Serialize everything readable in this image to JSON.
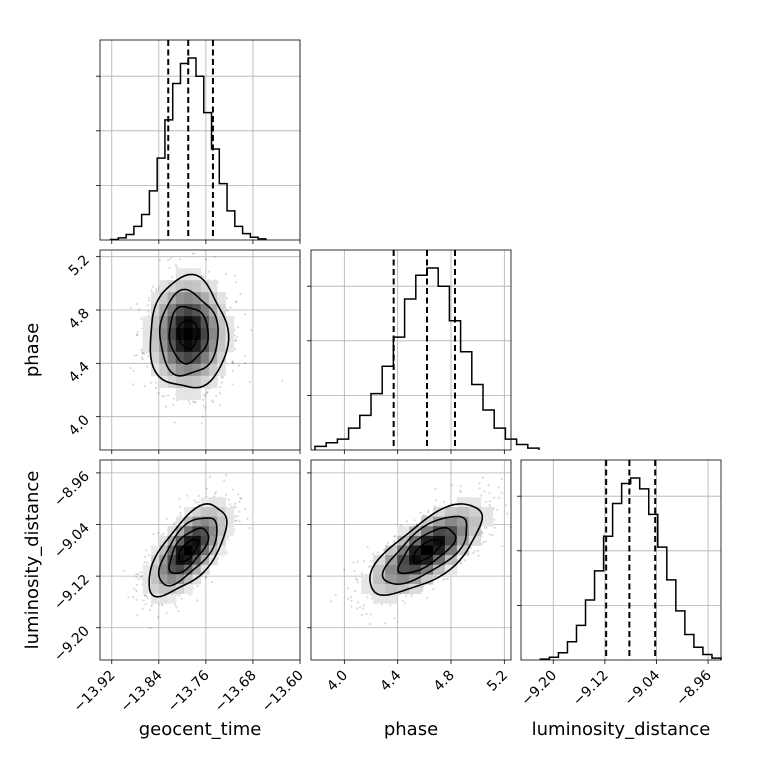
{
  "chart_data": {
    "type": "corner",
    "parameters": [
      {
        "name": "geocent_time",
        "label": "geocent_time",
        "range": [
          -13.94,
          -13.6
        ],
        "ticks": [
          -13.92,
          -13.84,
          -13.76,
          -13.68,
          -13.6
        ],
        "tick_labels": [
          "−13.92",
          "−13.84",
          "−13.76",
          "−13.68",
          "−13.60"
        ],
        "quantiles": [
          -13.824,
          -13.79,
          -13.748
        ],
        "mean": -13.79,
        "sd": 0.033
      },
      {
        "name": "phase",
        "label": "phase",
        "range": [
          3.75,
          5.25
        ],
        "ticks": [
          4.0,
          4.4,
          4.8,
          5.2
        ],
        "tick_labels": [
          "4.0",
          "4.4",
          "4.8",
          "5.2"
        ],
        "quantiles": [
          4.37,
          4.62,
          4.83
        ],
        "mean": 4.62,
        "sd": 0.21
      },
      {
        "name": "luminosity_distance",
        "label": "luminosity_distance",
        "range": [
          -9.25,
          -8.94
        ],
        "ticks": [
          -9.2,
          -9.12,
          -9.04,
          -8.96
        ],
        "tick_labels": [
          "−9.20",
          "−9.12",
          "−9.04",
          "−8.96"
        ],
        "quantiles": [
          -9.118,
          -9.082,
          -9.042
        ],
        "mean": -9.08,
        "sd": 0.035
      }
    ],
    "histograms": [
      {
        "param": "geocent_time",
        "bins": 20,
        "counts": [
          0.003,
          0.012,
          0.03,
          0.075,
          0.14,
          0.27,
          0.45,
          0.66,
          0.86,
          0.97,
          1.0,
          0.9,
          0.7,
          0.5,
          0.31,
          0.16,
          0.075,
          0.035,
          0.015,
          0.006
        ]
      },
      {
        "param": "phase",
        "bins": 20,
        "counts": [
          0.02,
          0.04,
          0.06,
          0.12,
          0.19,
          0.31,
          0.46,
          0.62,
          0.83,
          0.96,
          1.0,
          0.9,
          0.71,
          0.54,
          0.36,
          0.22,
          0.12,
          0.06,
          0.03,
          0.01
        ]
      },
      {
        "param": "luminosity_distance",
        "bins": 20,
        "counts": [
          0.005,
          0.015,
          0.04,
          0.1,
          0.19,
          0.33,
          0.49,
          0.68,
          0.86,
          0.97,
          1.0,
          0.94,
          0.8,
          0.62,
          0.44,
          0.27,
          0.14,
          0.07,
          0.03,
          0.01
        ]
      }
    ],
    "scatter_2d": [
      {
        "x": "geocent_time",
        "y": "phase",
        "correlation": 0.0
      },
      {
        "x": "geocent_time",
        "y": "luminosity_distance",
        "correlation": 0.65
      },
      {
        "x": "phase",
        "y": "luminosity_distance",
        "correlation": 0.7
      }
    ],
    "contour_levels_sigma": [
      0.5,
      1.0,
      1.5,
      2.0
    ],
    "grid": true
  }
}
